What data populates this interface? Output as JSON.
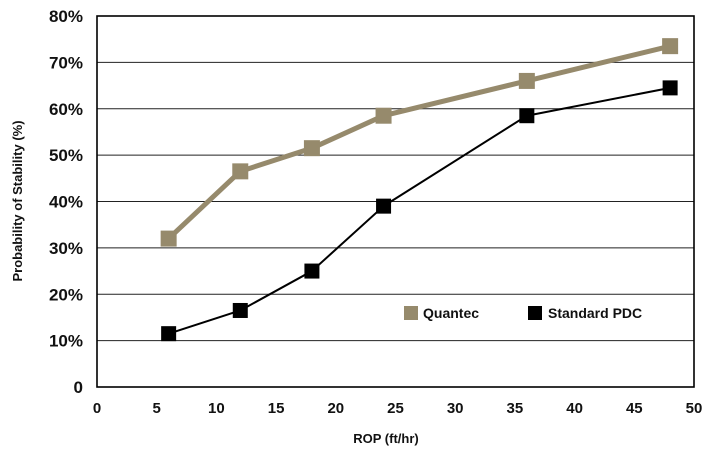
{
  "chart_data": {
    "type": "line",
    "xlabel": "ROP (ft/hr)",
    "ylabel": "Probability of Stability (%)",
    "xlim": [
      0,
      50
    ],
    "ylim": [
      0,
      80
    ],
    "x_ticks": [
      "0",
      "5",
      "10",
      "15",
      "20",
      "25",
      "30",
      "35",
      "40",
      "45",
      "50"
    ],
    "y_ticks": [
      "0",
      "10%",
      "20%",
      "30%",
      "40%",
      "50%",
      "60%",
      "70%",
      "80%"
    ],
    "grid": "horizontal",
    "legend_position": "bottom-right",
    "series": [
      {
        "name": "Quantec",
        "color": "#968A6C",
        "x": [
          6,
          12,
          18,
          24,
          36,
          48
        ],
        "y": [
          32,
          46.5,
          51.5,
          58.5,
          66,
          73.5
        ]
      },
      {
        "name": "Standard PDC",
        "color": "#000000",
        "x": [
          6,
          12,
          18,
          24,
          36,
          48
        ],
        "y": [
          11.5,
          16.5,
          25,
          39,
          58.5,
          64.5
        ]
      }
    ]
  }
}
